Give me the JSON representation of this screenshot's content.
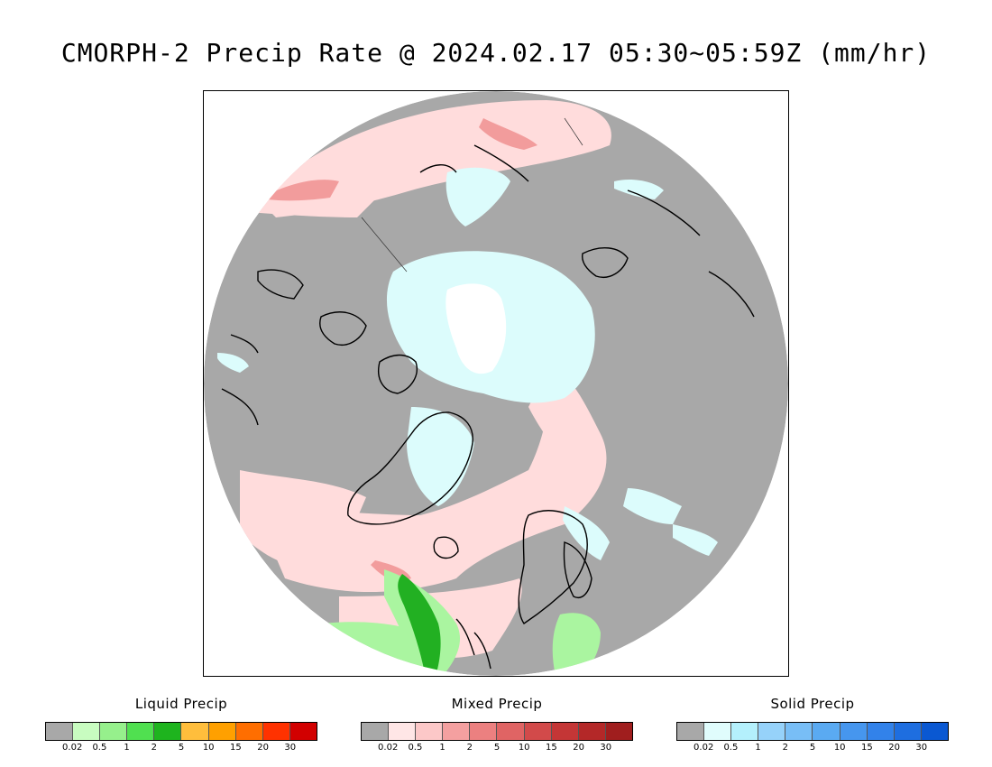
{
  "title": "CMORPH-2 Precip Rate @ 2024.02.17 05:30~05:59Z (mm/hr)",
  "map": {
    "background_color": "#a8a8a8",
    "coastline_color": "#000000",
    "colors": {
      "no_precip": "#a8a8a8",
      "mixed_light": "#ffdcdc",
      "mixed_moderate": "#f29c9c",
      "solid_light": "#dcfcfc",
      "liquid_light": "#aaf5a0",
      "liquid_moderate": "#22b022",
      "polar_gap": "#ffffff"
    }
  },
  "legends": [
    {
      "title": "Liquid Precip",
      "colors": [
        "#a8a8a8",
        "#c8fcc0",
        "#96f08c",
        "#50e050",
        "#1eb41e",
        "#ffbe3c",
        "#ffa000",
        "#ff6e00",
        "#ff3200",
        "#d20000"
      ],
      "ticks": [
        "0.02",
        "0.5",
        "1",
        "2",
        "5",
        "10",
        "15",
        "20",
        "30"
      ]
    },
    {
      "title": "Mixed Precip",
      "colors": [
        "#a8a8a8",
        "#ffe6e6",
        "#fcc8c8",
        "#f4a0a0",
        "#ec8080",
        "#e06464",
        "#d24a4a",
        "#c43636",
        "#b42828",
        "#a01e1e"
      ],
      "ticks": [
        "0.02",
        "0.5",
        "1",
        "2",
        "5",
        "10",
        "15",
        "20",
        "30"
      ]
    },
    {
      "title": "Solid Precip",
      "colors": [
        "#a8a8a8",
        "#e0fcfc",
        "#b4f0fc",
        "#96d2fa",
        "#78bef6",
        "#5aaaf2",
        "#4696ee",
        "#3282ea",
        "#1e6ee0",
        "#0a58d2"
      ],
      "ticks": [
        "0.02",
        "0.5",
        "1",
        "2",
        "5",
        "10",
        "15",
        "20",
        "30"
      ]
    }
  ]
}
